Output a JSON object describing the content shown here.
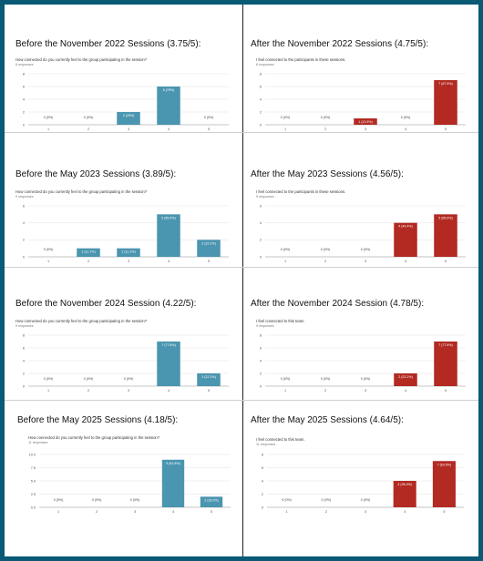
{
  "colors": {
    "before": "#4a95b0",
    "after": "#b22a22",
    "background": "#0a5a76"
  },
  "panels": [
    {
      "title": "Before the November 2022 Sessions (3.75/5):",
      "question": "How connected do you currently feel to the group participating in the session?",
      "responses": "8 responses"
    },
    {
      "title": "After the November 2022 Sessions (4.75/5):",
      "question": "I feel connected to the participants in these sessions.",
      "responses": "8 responses"
    },
    {
      "title": "Before the May 2023 Sessions (3.89/5):",
      "question": "How connected do you currently feel to the group participating in the session?",
      "responses": "9 responses"
    },
    {
      "title": "After the May 2023 Sessions (4.56/5):",
      "question": "I feel connected to the participants in these sessions.",
      "responses": "9 responses"
    },
    {
      "title": "Before the November 2024 Session (4.22/5):",
      "question": "How connected do you currently feel to the group participating in the session?",
      "responses": "9 responses"
    },
    {
      "title": "After the November 2024 Session (4.78/5):",
      "question": "I feel connected to this team.",
      "responses": "9 responses"
    },
    {
      "title": "Before the May 2025 Sessions (4.18/5):",
      "question": "How connected do you currently feel to the group participating in the session?",
      "responses": "11 responses"
    },
    {
      "title": "After the May 2025 Sessions (4.64/5):",
      "question": "I feel connected to this team.",
      "responses": "11 responses"
    }
  ],
  "chart_data": [
    {
      "type": "bar",
      "categories": [
        "1",
        "2",
        "3",
        "4",
        "5"
      ],
      "values": [
        0,
        0,
        2,
        6,
        0
      ],
      "labels": [
        "0 (0%)",
        "0 (0%)",
        "2 (25%)",
        "6 (75%)",
        "0 (0%)"
      ],
      "yticks": [
        0,
        2,
        4,
        6,
        8
      ],
      "ylim": [
        0,
        8
      ],
      "color": "before"
    },
    {
      "type": "bar",
      "categories": [
        "1",
        "2",
        "3",
        "4",
        "5"
      ],
      "values": [
        0,
        0,
        1,
        0,
        7
      ],
      "labels": [
        "0 (0%)",
        "0 (0%)",
        "1 (12.5%)",
        "0 (0%)",
        "7 (87.5%)"
      ],
      "yticks": [
        0,
        2,
        4,
        6,
        8
      ],
      "ylim": [
        0,
        8
      ],
      "color": "after"
    },
    {
      "type": "bar",
      "categories": [
        "1",
        "2",
        "3",
        "4",
        "5"
      ],
      "values": [
        0,
        1,
        1,
        5,
        2
      ],
      "labels": [
        "0 (0%)",
        "1 (11.1%)",
        "1 (11.1%)",
        "5 (55.6%)",
        "2 (22.2%)"
      ],
      "yticks": [
        0,
        2,
        4,
        6
      ],
      "ylim": [
        0,
        6
      ],
      "color": "before"
    },
    {
      "type": "bar",
      "categories": [
        "1",
        "2",
        "3",
        "4",
        "5"
      ],
      "values": [
        0,
        0,
        0,
        4,
        5
      ],
      "labels": [
        "0 (0%)",
        "0 (0%)",
        "0 (0%)",
        "4 (44.4%)",
        "5 (55.6%)"
      ],
      "yticks": [
        0,
        2,
        4,
        6
      ],
      "ylim": [
        0,
        6
      ],
      "color": "after"
    },
    {
      "type": "bar",
      "categories": [
        "1",
        "2",
        "3",
        "4",
        "5"
      ],
      "values": [
        0,
        0,
        0,
        7,
        2
      ],
      "labels": [
        "0 (0%)",
        "0 (0%)",
        "0 (0%)",
        "7 (77.8%)",
        "2 (22.2%)"
      ],
      "yticks": [
        0,
        2,
        4,
        6,
        8
      ],
      "ylim": [
        0,
        8
      ],
      "color": "before"
    },
    {
      "type": "bar",
      "categories": [
        "1",
        "2",
        "3",
        "4",
        "5"
      ],
      "values": [
        0,
        0,
        0,
        2,
        7
      ],
      "labels": [
        "0 (0%)",
        "0 (0%)",
        "0 (0%)",
        "2 (22.2%)",
        "7 (77.8%)"
      ],
      "yticks": [
        0,
        2,
        4,
        6,
        8
      ],
      "ylim": [
        0,
        8
      ],
      "color": "after"
    },
    {
      "type": "bar",
      "categories": [
        "1",
        "2",
        "3",
        "4",
        "5"
      ],
      "values": [
        0,
        0,
        0,
        9,
        2
      ],
      "labels": [
        "0 (0%)",
        "0 (0%)",
        "0 (0%)",
        "9 (81.8%)",
        "2 (18.2%)"
      ],
      "yticks": [
        0,
        2.5,
        5,
        7.5,
        10
      ],
      "ytick_labels": [
        "0.0",
        "2.5",
        "5.0",
        "7.5",
        "10.0"
      ],
      "ylim": [
        0,
        10
      ],
      "color": "before"
    },
    {
      "type": "bar",
      "categories": [
        "1",
        "2",
        "3",
        "4",
        "5"
      ],
      "values": [
        0,
        0,
        0,
        4,
        7
      ],
      "labels": [
        "0 (0%)",
        "0 (0%)",
        "0 (0%)",
        "4 (36.4%)",
        "7 (63.6%)"
      ],
      "yticks": [
        0,
        2,
        4,
        6,
        8
      ],
      "ylim": [
        0,
        8
      ],
      "color": "after"
    }
  ]
}
